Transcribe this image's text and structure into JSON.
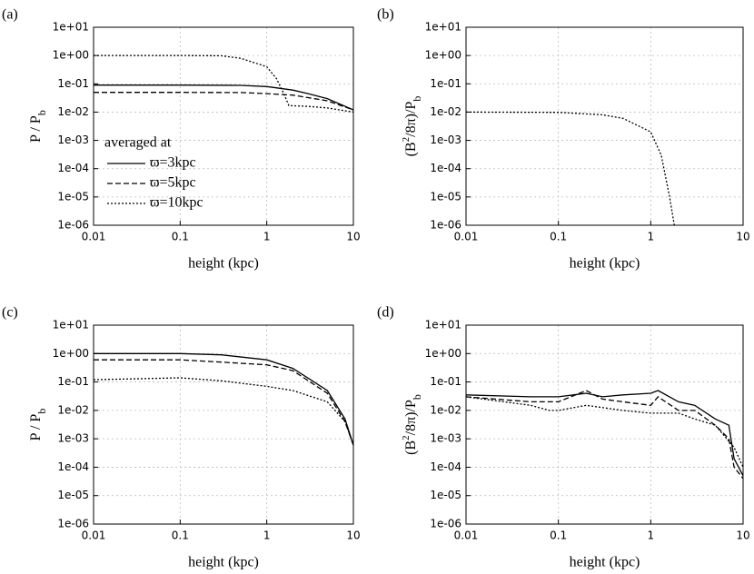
{
  "chart_data": [
    {
      "type": "line",
      "panel_label": "(a)",
      "xscale": "log",
      "yscale": "log",
      "grid": true,
      "legend": "lower left",
      "legend_title": "averaged at",
      "xlabel": "height (kpc)",
      "ylabel": [
        {
          "text": "P / P",
          "style": "normal"
        },
        {
          "text": "b",
          "style": "sub"
        }
      ],
      "xlim": [
        0.01,
        10
      ],
      "xticks": [
        0.01,
        0.1,
        1,
        10
      ],
      "ylim": [
        1e-06,
        10
      ],
      "yticks": [
        {
          "value": 1e-06,
          "label": "1e-06"
        },
        {
          "value": 1e-05,
          "label": "1e-05"
        },
        {
          "value": 0.0001,
          "label": "1e-04"
        },
        {
          "value": 0.001,
          "label": "1e-03"
        },
        {
          "value": 0.01,
          "label": "1e-02"
        },
        {
          "value": 0.1,
          "label": "1e-01"
        },
        {
          "value": 1,
          "label": "1e+00"
        },
        {
          "value": 10,
          "label": "1e+01"
        }
      ],
      "series": [
        {
          "name": "ϖ=3kpc",
          "color": "#000000",
          "dash": "solid",
          "x": [
            0.01,
            0.1,
            0.5,
            1,
            2,
            3,
            5,
            10
          ],
          "values": [
            0.09,
            0.09,
            0.088,
            0.08,
            0.06,
            0.045,
            0.03,
            0.012
          ]
        },
        {
          "name": "ϖ=5kpc",
          "color": "#000000",
          "dash": "dashed",
          "x": [
            0.01,
            0.1,
            0.5,
            1,
            2,
            5,
            10
          ],
          "values": [
            0.05,
            0.05,
            0.049,
            0.045,
            0.04,
            0.025,
            0.012
          ]
        },
        {
          "name": "ϖ=10kpc",
          "color": "#000000",
          "dash": "dotted",
          "x": [
            0.01,
            0.1,
            0.3,
            0.5,
            1,
            1.3,
            1.6,
            1.8,
            3,
            5,
            10
          ],
          "values": [
            1,
            1,
            0.98,
            0.8,
            0.4,
            0.15,
            0.04,
            0.017,
            0.016,
            0.014,
            0.01
          ]
        }
      ]
    },
    {
      "type": "line",
      "panel_label": "(b)",
      "xscale": "log",
      "yscale": "log",
      "grid": true,
      "xlabel": "height (kpc)",
      "ylabel": [
        {
          "text": "(B",
          "style": "normal"
        },
        {
          "text": "2",
          "style": "sup"
        },
        {
          "text": "/8π)/P",
          "style": "normal"
        },
        {
          "text": "b",
          "style": "sub"
        }
      ],
      "xlim": [
        0.01,
        10
      ],
      "xticks": [
        0.01,
        0.1,
        1,
        10
      ],
      "ylim": [
        1e-06,
        10
      ],
      "yticks": [
        {
          "value": 1e-06,
          "label": "1e-06"
        },
        {
          "value": 1e-05,
          "label": "1e-05"
        },
        {
          "value": 0.0001,
          "label": "1e-04"
        },
        {
          "value": 0.001,
          "label": "1e-03"
        },
        {
          "value": 0.01,
          "label": "1e-02"
        },
        {
          "value": 0.1,
          "label": "1e-01"
        },
        {
          "value": 1,
          "label": "1e+00"
        },
        {
          "value": 10,
          "label": "1e+01"
        }
      ],
      "series": [
        {
          "color": "#000000",
          "dash": "dotted",
          "x": [
            0.01,
            0.1,
            0.3,
            0.5,
            1,
            1.3,
            1.6,
            1.8
          ],
          "values": [
            0.01,
            0.0098,
            0.008,
            0.006,
            0.002,
            0.0003,
            1e-05,
            1e-06
          ]
        }
      ]
    },
    {
      "type": "line",
      "panel_label": "(c)",
      "xscale": "log",
      "yscale": "log",
      "grid": true,
      "xlabel": "height (kpc)",
      "ylabel": [
        {
          "text": "P / P",
          "style": "normal"
        },
        {
          "text": "b",
          "style": "sub"
        }
      ],
      "xlim": [
        0.01,
        10
      ],
      "xticks": [
        0.01,
        0.1,
        1,
        10
      ],
      "ylim": [
        1e-06,
        10
      ],
      "yticks": [
        {
          "value": 1e-06,
          "label": "1e-06"
        },
        {
          "value": 1e-05,
          "label": "1e-05"
        },
        {
          "value": 0.0001,
          "label": "1e-04"
        },
        {
          "value": 0.001,
          "label": "1e-03"
        },
        {
          "value": 0.01,
          "label": "1e-02"
        },
        {
          "value": 0.1,
          "label": "1e-01"
        },
        {
          "value": 1,
          "label": "1e+00"
        },
        {
          "value": 10,
          "label": "1e+01"
        }
      ],
      "series": [
        {
          "color": "#000000",
          "dash": "solid",
          "x": [
            0.01,
            0.1,
            0.3,
            1,
            2,
            5,
            8,
            10
          ],
          "values": [
            1,
            1,
            0.9,
            0.6,
            0.3,
            0.05,
            0.005,
            0.0006
          ]
        },
        {
          "color": "#000000",
          "dash": "dashed",
          "x": [
            0.01,
            0.1,
            0.3,
            1,
            2,
            5,
            8,
            10
          ],
          "values": [
            0.6,
            0.6,
            0.5,
            0.4,
            0.25,
            0.04,
            0.004,
            0.0006
          ]
        },
        {
          "color": "#000000",
          "dash": "dotted",
          "x": [
            0.01,
            0.1,
            0.3,
            1,
            2,
            5,
            8,
            10
          ],
          "values": [
            0.12,
            0.14,
            0.11,
            0.07,
            0.05,
            0.02,
            0.004,
            0.0006
          ]
        }
      ]
    },
    {
      "type": "line",
      "panel_label": "(d)",
      "xscale": "log",
      "yscale": "log",
      "grid": true,
      "xlabel": "height (kpc)",
      "ylabel": [
        {
          "text": "(B",
          "style": "normal"
        },
        {
          "text": "2",
          "style": "sup"
        },
        {
          "text": "/8π)/P",
          "style": "normal"
        },
        {
          "text": "b",
          "style": "sub"
        }
      ],
      "xlim": [
        0.01,
        10
      ],
      "xticks": [
        0.01,
        0.1,
        1,
        10
      ],
      "ylim": [
        1e-06,
        10
      ],
      "yticks": [
        {
          "value": 1e-06,
          "label": "1e-06"
        },
        {
          "value": 1e-05,
          "label": "1e-05"
        },
        {
          "value": 0.0001,
          "label": "1e-04"
        },
        {
          "value": 0.001,
          "label": "1e-03"
        },
        {
          "value": 0.01,
          "label": "1e-02"
        },
        {
          "value": 0.1,
          "label": "1e-01"
        },
        {
          "value": 1,
          "label": "1e+00"
        },
        {
          "value": 10,
          "label": "1e+01"
        }
      ],
      "series": [
        {
          "color": "#000000",
          "dash": "solid",
          "x": [
            0.01,
            0.05,
            0.1,
            0.2,
            0.3,
            0.5,
            1,
            1.2,
            2,
            3,
            5,
            7,
            8,
            10
          ],
          "values": [
            0.035,
            0.03,
            0.03,
            0.04,
            0.03,
            0.035,
            0.04,
            0.05,
            0.02,
            0.015,
            0.005,
            0.003,
            0.0002,
            5e-05
          ]
        },
        {
          "color": "#000000",
          "dash": "dashed",
          "x": [
            0.01,
            0.05,
            0.1,
            0.2,
            0.3,
            0.5,
            1,
            1.2,
            2,
            3,
            5,
            7,
            8,
            10
          ],
          "values": [
            0.03,
            0.02,
            0.02,
            0.05,
            0.025,
            0.02,
            0.015,
            0.03,
            0.01,
            0.01,
            0.003,
            0.001,
            0.0001,
            4e-05
          ]
        },
        {
          "color": "#000000",
          "dash": "dotted",
          "x": [
            0.01,
            0.05,
            0.08,
            0.1,
            0.2,
            0.5,
            1,
            2,
            3,
            5,
            8,
            10
          ],
          "values": [
            0.03,
            0.015,
            0.01,
            0.01,
            0.015,
            0.01,
            0.008,
            0.008,
            0.005,
            0.003,
            0.0005,
            0.0001
          ]
        }
      ]
    }
  ]
}
